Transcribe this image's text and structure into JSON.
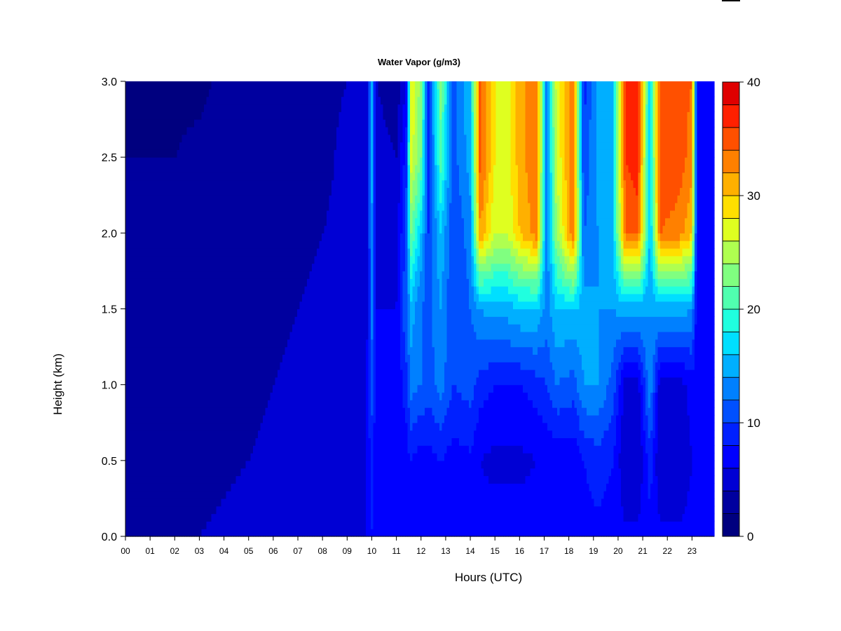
{
  "chart_data": {
    "type": "heatmap",
    "title": "Water Vapor (g/m3)",
    "xlabel": "Hours (UTC)",
    "ylabel": "Height (km)",
    "x_ticks": [
      "00",
      "01",
      "02",
      "03",
      "04",
      "05",
      "06",
      "07",
      "08",
      "09",
      "10",
      "11",
      "12",
      "13",
      "14",
      "15",
      "16",
      "17",
      "18",
      "19",
      "20",
      "21",
      "22",
      "23"
    ],
    "y_ticks": [
      "0.0",
      "0.5",
      "1.0",
      "1.5",
      "2.0",
      "2.5",
      "3.0"
    ],
    "xlim": [
      0,
      23.9
    ],
    "ylim": [
      0,
      3.0
    ],
    "colorbar": {
      "min": 0,
      "max": 40,
      "step": 2,
      "tick_labels": [
        "0",
        "10",
        "20",
        "30",
        "40"
      ],
      "colors": [
        "#00007F",
        "#00009F",
        "#0000D4",
        "#0000FF",
        "#0020FF",
        "#0050FF",
        "#0080FF",
        "#00AFFF",
        "#00DFFF",
        "#20FFDF",
        "#50FFAF",
        "#80FF80",
        "#AFFF50",
        "#DFFF20",
        "#FFDF00",
        "#FFB000",
        "#FF8000",
        "#FF5000",
        "#FF2000",
        "#DF0000"
      ]
    },
    "profiles": [
      {
        "t": 0.0,
        "v": [
          2.5,
          2.5,
          2.5,
          2.5,
          2.5,
          2.0,
          1.5
        ]
      },
      {
        "t": 1.0,
        "v": [
          3.0,
          2.5,
          2.5,
          2.5,
          2.5,
          2.0,
          1.5
        ]
      },
      {
        "t": 2.0,
        "v": [
          3.0,
          2.5,
          2.5,
          2.5,
          2.5,
          2.0,
          1.5
        ]
      },
      {
        "t": 3.0,
        "v": [
          4.0,
          3.0,
          2.5,
          2.5,
          2.5,
          2.5,
          1.5
        ]
      },
      {
        "t": 4.0,
        "v": [
          4.5,
          3.5,
          3.0,
          2.5,
          2.5,
          2.5,
          2.5
        ]
      },
      {
        "t": 5.0,
        "v": [
          5.0,
          4.0,
          3.5,
          3.0,
          3.0,
          2.5,
          2.5
        ]
      },
      {
        "t": 6.0,
        "v": [
          5.0,
          4.5,
          4.0,
          3.5,
          3.0,
          3.0,
          3.0
        ]
      },
      {
        "t": 7.0,
        "v": [
          5.5,
          4.5,
          4.5,
          4.0,
          3.5,
          3.0,
          3.0
        ]
      },
      {
        "t": 8.0,
        "v": [
          5.5,
          5.0,
          5.0,
          4.5,
          4.0,
          3.5,
          3.5
        ]
      },
      {
        "t": 9.0,
        "v": [
          6.0,
          5.5,
          5.5,
          5.0,
          4.5,
          4.5,
          4.0
        ]
      },
      {
        "t": 9.8,
        "v": [
          6.0,
          6.0,
          6.0,
          5.5,
          5.5,
          5.0,
          4.5
        ]
      },
      {
        "t": 10.0,
        "v": [
          8.0,
          9.0,
          11.0,
          13.0,
          14.0,
          15.0,
          15.0
        ]
      },
      {
        "t": 10.2,
        "v": [
          6.0,
          6.0,
          6.5,
          6.0,
          5.5,
          5.0,
          4.0
        ]
      },
      {
        "t": 11.0,
        "v": [
          6.0,
          6.5,
          6.5,
          6.0,
          5.0,
          4.0,
          2.5
        ]
      },
      {
        "t": 11.4,
        "v": [
          6.0,
          7.0,
          9.0,
          12.0,
          11.0,
          9.0,
          6.0
        ]
      },
      {
        "t": 11.6,
        "v": [
          6.0,
          8.0,
          13.0,
          15.0,
          22.0,
          27.0,
          28.0
        ]
      },
      {
        "t": 12.0,
        "v": [
          6.5,
          7.0,
          12.0,
          12.0,
          16.0,
          22.0,
          23.0
        ]
      },
      {
        "t": 12.3,
        "v": [
          6.5,
          7.0,
          11.0,
          11.0,
          10.0,
          9.0,
          9.0
        ]
      },
      {
        "t": 12.8,
        "v": [
          7.0,
          8.0,
          13.0,
          14.0,
          16.0,
          21.0,
          23.0
        ]
      },
      {
        "t": 13.3,
        "v": [
          6.5,
          7.0,
          10.0,
          10.0,
          10.0,
          11.0,
          11.0
        ]
      },
      {
        "t": 14.0,
        "v": [
          7.0,
          7.5,
          11.0,
          12.0,
          13.0,
          15.0,
          16.0
        ]
      },
      {
        "t": 14.4,
        "v": [
          6.5,
          6.0,
          9.0,
          14.0,
          32.0,
          35.0,
          35.0
        ]
      },
      {
        "t": 15.0,
        "v": [
          7.0,
          5.5,
          8.0,
          15.0,
          26.0,
          28.0,
          28.0
        ]
      },
      {
        "t": 15.5,
        "v": [
          7.0,
          5.5,
          8.0,
          15.0,
          26.0,
          27.0,
          27.0
        ]
      },
      {
        "t": 16.0,
        "v": [
          7.0,
          5.5,
          8.0,
          16.0,
          30.0,
          31.0,
          31.0
        ]
      },
      {
        "t": 16.7,
        "v": [
          7.0,
          6.0,
          9.0,
          16.0,
          33.0,
          34.0,
          34.0
        ]
      },
      {
        "t": 17.1,
        "v": [
          6.5,
          6.0,
          10.0,
          13.0,
          12.0,
          12.0,
          12.0
        ]
      },
      {
        "t": 17.5,
        "v": [
          7.0,
          6.5,
          12.0,
          16.0,
          24.0,
          26.0,
          27.0
        ]
      },
      {
        "t": 18.2,
        "v": [
          7.0,
          6.5,
          11.0,
          16.0,
          34.0,
          34.0,
          34.0
        ]
      },
      {
        "t": 18.6,
        "v": [
          7.0,
          8.0,
          14.0,
          15.0,
          12.0,
          10.0,
          9.0
        ]
      },
      {
        "t": 19.2,
        "v": [
          7.5,
          9.0,
          14.0,
          14.0,
          14.0,
          15.0,
          15.0
        ]
      },
      {
        "t": 19.8,
        "v": [
          7.0,
          8.0,
          11.0,
          14.0,
          16.0,
          16.0,
          16.0
        ]
      },
      {
        "t": 20.3,
        "v": [
          6.5,
          4.0,
          5.0,
          15.0,
          34.0,
          36.0,
          37.0
        ]
      },
      {
        "t": 20.8,
        "v": [
          6.5,
          4.0,
          5.0,
          15.0,
          35.0,
          37.0,
          38.0
        ]
      },
      {
        "t": 21.3,
        "v": [
          7.5,
          9.0,
          14.0,
          14.0,
          15.0,
          16.0,
          16.0
        ]
      },
      {
        "t": 21.7,
        "v": [
          6.5,
          4.0,
          5.0,
          15.0,
          34.0,
          36.0,
          36.0
        ]
      },
      {
        "t": 22.5,
        "v": [
          6.5,
          4.0,
          5.0,
          15.0,
          33.0,
          35.0,
          35.0
        ]
      },
      {
        "t": 23.0,
        "v": [
          7.0,
          6.0,
          7.0,
          14.0,
          30.0,
          33.0,
          34.0
        ]
      },
      {
        "t": 23.2,
        "v": [
          6.5,
          6.5,
          7.0,
          6.5,
          6.5,
          6.5,
          6.5
        ]
      },
      {
        "t": 23.9,
        "v": [
          6.0,
          6.0,
          6.0,
          6.0,
          6.0,
          6.0,
          6.0
        ]
      }
    ]
  }
}
